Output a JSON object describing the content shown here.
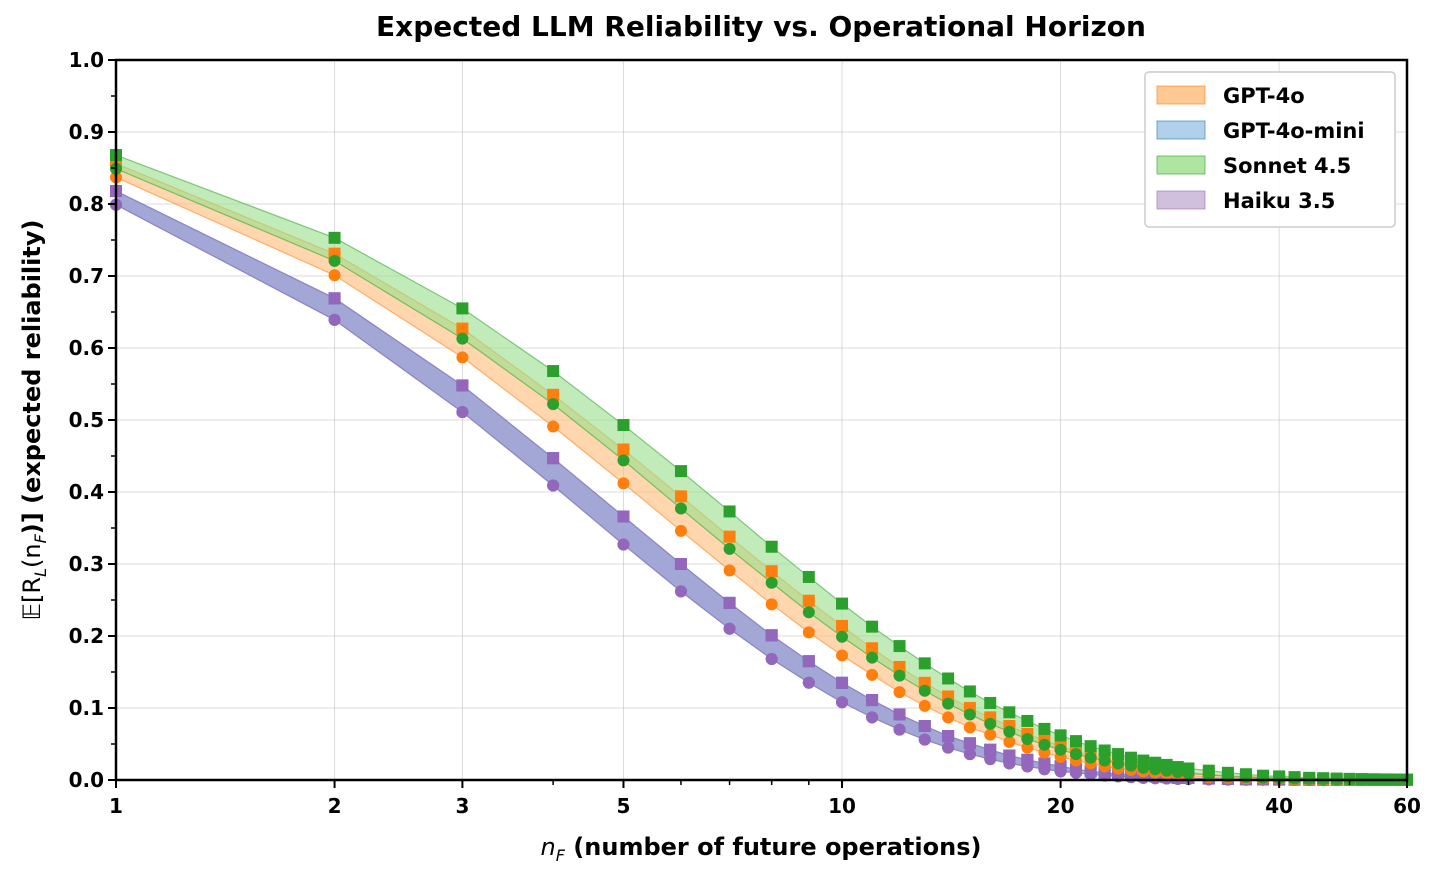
{
  "chart_data": {
    "type": "line",
    "title": "Expected LLM Reliability vs. Operational Horizon",
    "xlabel_var": "n",
    "xlabel_sub": "F",
    "xlabel_rest": " (number of future operations)",
    "ylabel_E": "𝔼",
    "ylabel_pre": "[R",
    "ylabel_sub1": "L",
    "ylabel_mid": "(n",
    "ylabel_sub2": "F",
    "ylabel_post": ")] (expected reliability)",
    "xscale": "log",
    "xlim": [
      1,
      60
    ],
    "ylim": [
      0,
      1
    ],
    "x_ticks": [
      1,
      2,
      3,
      5,
      10,
      20,
      40,
      60
    ],
    "x_tick_labels": [
      "1",
      "2",
      "3",
      "5",
      "10",
      "20",
      "40",
      "60"
    ],
    "y_ticks": [
      0,
      0.1,
      0.2,
      0.3,
      0.4,
      0.5,
      0.6,
      0.7,
      0.8,
      0.9,
      1.0
    ],
    "y_tick_labels": [
      "0.0",
      "0.1",
      "0.2",
      "0.3",
      "0.4",
      "0.5",
      "0.6",
      "0.7",
      "0.8",
      "0.9",
      "1.0"
    ],
    "grid": true,
    "legend_position": "top-right",
    "x": [
      1,
      2,
      3,
      4,
      5,
      6,
      7,
      8,
      9,
      10,
      11,
      12,
      13,
      14,
      15,
      16,
      17,
      18,
      19,
      20,
      21,
      22,
      23,
      24,
      25,
      26,
      27,
      28,
      29,
      30,
      32,
      34,
      36,
      38,
      40,
      42,
      44,
      46,
      48,
      50,
      52,
      54,
      56,
      58,
      60
    ],
    "series": [
      {
        "name": "GPT-4o",
        "color": "#ff7f0e",
        "band_color": "#ffbb78",
        "upper": [
          0.856,
          0.731,
          0.627,
          0.535,
          0.459,
          0.394,
          0.338,
          0.29,
          0.249,
          0.214,
          0.183,
          0.157,
          0.135,
          0.116,
          0.1,
          0.087,
          0.075,
          0.064,
          0.055,
          0.047,
          0.04,
          0.034,
          0.029,
          0.025,
          0.021,
          0.018,
          0.016,
          0.014,
          0.012,
          0.01,
          0.008,
          0.006,
          0.005,
          0.004,
          0.003,
          0.002,
          0.002,
          0.0015,
          0.001,
          0.001,
          0.0008,
          0.0006,
          0.0005,
          0.0004,
          0.0003
        ],
        "lower": [
          0.837,
          0.701,
          0.587,
          0.491,
          0.412,
          0.346,
          0.291,
          0.244,
          0.205,
          0.173,
          0.146,
          0.122,
          0.103,
          0.087,
          0.073,
          0.063,
          0.053,
          0.045,
          0.038,
          0.032,
          0.027,
          0.023,
          0.019,
          0.016,
          0.014,
          0.012,
          0.01,
          0.008,
          0.007,
          0.006,
          0.004,
          0.003,
          0.0025,
          0.002,
          0.0015,
          0.001,
          0.0008,
          0.0006,
          0.0005,
          0.0004,
          0.0003,
          0.0002,
          0.0002,
          0.0001,
          0.0001
        ]
      },
      {
        "name": "GPT-4o-mini",
        "color": "#1f77b4",
        "band_color": "#9ec6e6",
        "upper": [
          0.818,
          0.669,
          0.548,
          0.447,
          0.366,
          0.3,
          0.246,
          0.201,
          0.165,
          0.135,
          0.111,
          0.091,
          0.075,
          0.061,
          0.051,
          0.042,
          0.034,
          0.028,
          0.023,
          0.019,
          0.015,
          0.012,
          0.01,
          0.008,
          0.007,
          0.006,
          0.005,
          0.004,
          0.003,
          0.003,
          0.002,
          0.0015,
          0.001,
          0.0008,
          0.0006,
          0.0005,
          0.0004,
          0.0003,
          0.0002,
          0.0002,
          0.0001,
          0.0001,
          0.0001,
          0.0001,
          0.0001
        ],
        "lower": [
          0.799,
          0.639,
          0.511,
          0.409,
          0.327,
          0.262,
          0.21,
          0.168,
          0.135,
          0.108,
          0.087,
          0.07,
          0.056,
          0.045,
          0.036,
          0.029,
          0.023,
          0.019,
          0.015,
          0.012,
          0.01,
          0.008,
          0.006,
          0.005,
          0.004,
          0.003,
          0.0025,
          0.002,
          0.0016,
          0.0013,
          0.0008,
          0.0005,
          0.0004,
          0.0003,
          0.0002,
          0.0001,
          0.0001,
          0.0001,
          0.0001,
          0.0001,
          0.0001,
          0.0001,
          0.0001,
          0.0001,
          0.0001
        ]
      },
      {
        "name": "Sonnet 4.5",
        "color": "#2ca02c",
        "band_color": "#98df8a",
        "upper": [
          0.868,
          0.753,
          0.655,
          0.568,
          0.493,
          0.429,
          0.373,
          0.324,
          0.282,
          0.245,
          0.213,
          0.186,
          0.162,
          0.141,
          0.123,
          0.107,
          0.094,
          0.082,
          0.071,
          0.062,
          0.054,
          0.047,
          0.041,
          0.036,
          0.031,
          0.027,
          0.024,
          0.021,
          0.018,
          0.016,
          0.013,
          0.01,
          0.008,
          0.006,
          0.005,
          0.004,
          0.003,
          0.0025,
          0.002,
          0.0016,
          0.0013,
          0.001,
          0.0008,
          0.0007,
          0.0005
        ],
        "lower": [
          0.849,
          0.721,
          0.613,
          0.522,
          0.444,
          0.377,
          0.321,
          0.274,
          0.233,
          0.199,
          0.17,
          0.145,
          0.124,
          0.106,
          0.091,
          0.078,
          0.067,
          0.057,
          0.049,
          0.042,
          0.036,
          0.031,
          0.027,
          0.023,
          0.02,
          0.017,
          0.015,
          0.013,
          0.011,
          0.009,
          0.007,
          0.005,
          0.004,
          0.003,
          0.0025,
          0.002,
          0.0015,
          0.0012,
          0.001,
          0.0008,
          0.0006,
          0.0005,
          0.0004,
          0.0003,
          0.0002
        ]
      },
      {
        "name": "Haiku 3.5",
        "color": "#9467bd",
        "band_color": "#c5b0d5",
        "upper": [
          0.818,
          0.669,
          0.548,
          0.447,
          0.366,
          0.3,
          0.246,
          0.201,
          0.165,
          0.135,
          0.111,
          0.091,
          0.075,
          0.061,
          0.051,
          0.042,
          0.034,
          0.028,
          0.023,
          0.019,
          0.015,
          0.012,
          0.01,
          0.008,
          0.007,
          0.006,
          0.005,
          0.004,
          0.003,
          0.003,
          0.002,
          0.0015,
          0.001,
          0.0008,
          0.0006,
          0.0005,
          0.0004,
          0.0003,
          0.0002,
          0.0002,
          0.0001,
          0.0001,
          0.0001,
          0.0001,
          0.0001
        ],
        "lower": [
          0.799,
          0.639,
          0.511,
          0.409,
          0.327,
          0.262,
          0.21,
          0.168,
          0.135,
          0.108,
          0.087,
          0.07,
          0.056,
          0.045,
          0.036,
          0.029,
          0.023,
          0.019,
          0.015,
          0.012,
          0.01,
          0.008,
          0.006,
          0.005,
          0.004,
          0.003,
          0.0025,
          0.002,
          0.0016,
          0.0013,
          0.0008,
          0.0005,
          0.0004,
          0.0003,
          0.0002,
          0.0001,
          0.0001,
          0.0001,
          0.0001,
          0.0001,
          0.0001,
          0.0001,
          0.0001,
          0.0001,
          0.0001
        ]
      }
    ],
    "haiku_overlap_band_color": "#9b9cd0"
  }
}
